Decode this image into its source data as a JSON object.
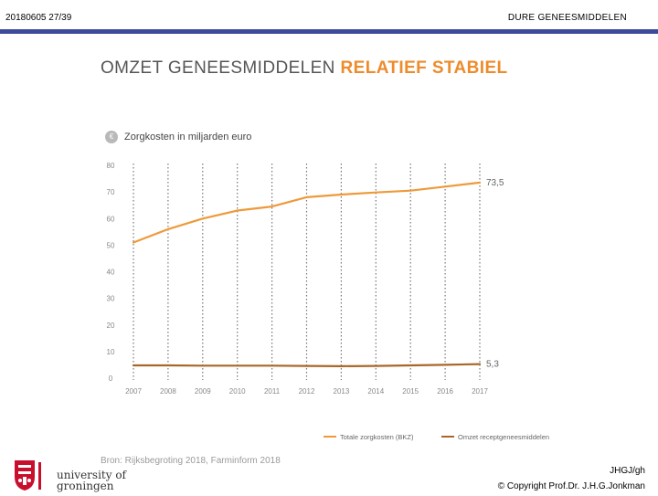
{
  "header": {
    "left": "20180605 27/39",
    "right": "DURE GENEESMIDDELEN",
    "accent_color": "#3c4b9b"
  },
  "title": {
    "part1": "OMZET GENEESMIDDELEN",
    "part2": "RELATIEF STABIEL"
  },
  "unit": {
    "badge": "€",
    "label": "Zorgkosten in miljarden euro"
  },
  "source": "Bron: Rijksbegroting 2018, Farminform 2018",
  "footer": {
    "line1": "JHGJ/gh",
    "line2": "© Copyright Prof.Dr. J.H.G.Jonkman",
    "logo_line1": "university of",
    "logo_line2": "groningen"
  },
  "chart_data": {
    "type": "line",
    "title": "Zorgkosten in miljarden euro",
    "xlabel": "",
    "ylabel": "",
    "categories": [
      "2007",
      "2008",
      "2009",
      "2010",
      "2011",
      "2012",
      "2013",
      "2014",
      "2015",
      "2016",
      "2017"
    ],
    "ylim": [
      0,
      80
    ],
    "yticks": [
      "0",
      "10",
      "20",
      "30",
      "40",
      "50",
      "60",
      "70",
      "80"
    ],
    "grid": "vertical-dotted",
    "legend_position": "bottom",
    "series": [
      {
        "name": "Totale zorgkosten (BKZ)",
        "color": "#ee9a3a",
        "values": [
          51,
          56,
          60,
          63,
          64.5,
          68,
          69,
          69.8,
          70.5,
          72,
          73.5
        ],
        "end_label": "73,5"
      },
      {
        "name": "Omzet receptgeneesmiddelen",
        "color": "#a8672a",
        "values": [
          4.8,
          4.8,
          4.7,
          4.7,
          4.7,
          4.6,
          4.5,
          4.6,
          4.8,
          5.0,
          5.3
        ],
        "end_label": "5,3"
      }
    ]
  }
}
